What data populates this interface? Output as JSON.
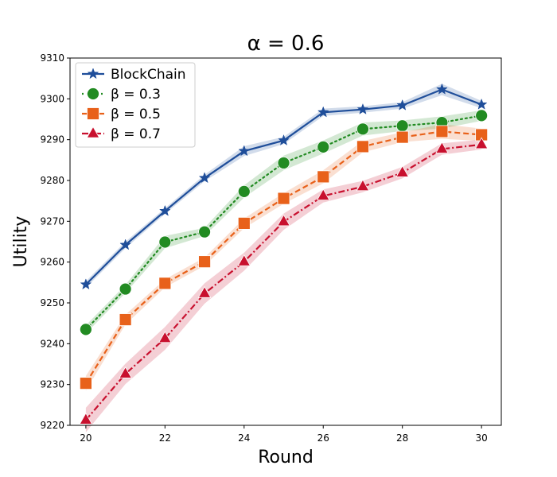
{
  "chart_data": {
    "type": "line",
    "title": "α = 0.6",
    "xlabel": "Round",
    "ylabel": "Utility",
    "xlim": [
      19.6,
      30.5
    ],
    "ylim": [
      9220,
      9310
    ],
    "xticks": [
      20,
      22,
      24,
      26,
      28,
      30
    ],
    "yticks": [
      9220,
      9230,
      9240,
      9250,
      9260,
      9270,
      9280,
      9290,
      9300,
      9310
    ],
    "x": [
      20,
      21,
      22,
      23,
      24,
      25,
      26,
      27,
      28,
      29,
      30
    ],
    "legend_position": "top-left",
    "series": [
      {
        "name": "BlockChain",
        "color": "#1f4e9a",
        "marker": "star",
        "linestyle": "solid",
        "values": [
          9254.5,
          9264.2,
          9272.5,
          9280.6,
          9287.2,
          9289.8,
          9296.7,
          9297.4,
          9298.4,
          9302.3,
          9298.6
        ],
        "band": [
          0.8,
          0.8,
          0.7,
          0.8,
          1.2,
          0.9,
          0.9,
          0.8,
          0.8,
          1.4,
          0.9
        ]
      },
      {
        "name": "β = 0.3",
        "color": "#228b22",
        "marker": "circle",
        "linestyle": "dotted",
        "values": [
          9243.5,
          9253.4,
          9264.9,
          9267.4,
          9277.3,
          9284.3,
          9288.2,
          9292.6,
          9293.4,
          9294.2,
          9295.9
        ],
        "band": [
          1.0,
          1.0,
          1.5,
          1.0,
          1.5,
          1.8,
          1.6,
          1.6,
          1.3,
          1.5,
          1.3
        ]
      },
      {
        "name": "β = 0.5",
        "color": "#e8611a",
        "marker": "square",
        "linestyle": "dashed",
        "values": [
          9230.3,
          9245.9,
          9254.8,
          9260.1,
          9269.5,
          9275.6,
          9280.9,
          9288.3,
          9290.6,
          9292.0,
          9291.2
        ],
        "band": [
          1.8,
          1.2,
          1.0,
          1.0,
          1.2,
          1.3,
          1.6,
          1.4,
          1.2,
          1.8,
          1.5
        ]
      },
      {
        "name": "β = 0.7",
        "color": "#c8102e",
        "marker": "triangle",
        "linestyle": "dashdot",
        "values": [
          9221.3,
          9232.6,
          9241.3,
          9252.3,
          9260.1,
          9269.9,
          9276.2,
          9278.5,
          9281.9,
          9287.7,
          9288.8
        ],
        "band": [
          3.0,
          2.5,
          2.8,
          2.5,
          2.2,
          2.0,
          1.6,
          1.4,
          1.4,
          1.4,
          1.2
        ]
      }
    ]
  }
}
